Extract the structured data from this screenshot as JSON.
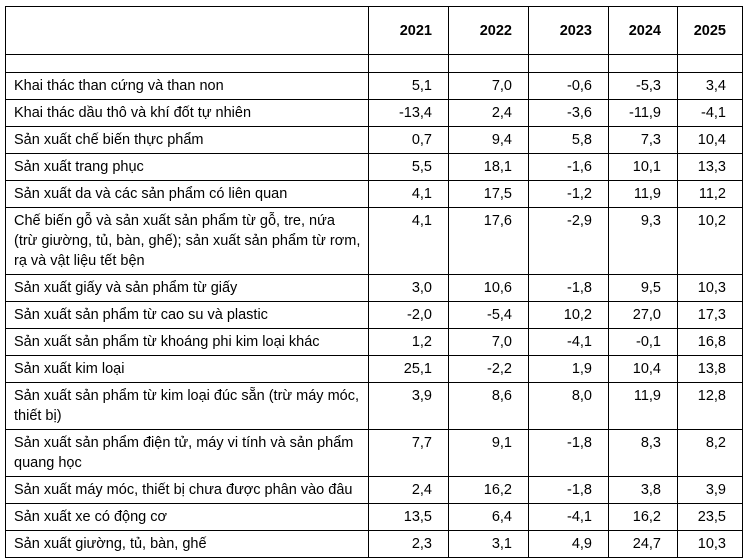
{
  "table": {
    "columns": [
      "",
      "2021",
      "2022",
      "2023",
      "2024",
      "2025"
    ],
    "rows": [
      {
        "label": "Khai thác than cứng và than non",
        "values": [
          "5,1",
          "7,0",
          "-0,6",
          "-5,3",
          "3,4"
        ]
      },
      {
        "label": "Khai thác dầu thô và khí đốt tự nhiên",
        "values": [
          "-13,4",
          "2,4",
          "-3,6",
          "-11,9",
          "-4,1"
        ]
      },
      {
        "label": "Sản xuất chế biến thực phẩm",
        "values": [
          "0,7",
          "9,4",
          "5,8",
          "7,3",
          "10,4"
        ]
      },
      {
        "label": "Sản xuất trang phục",
        "values": [
          "5,5",
          "18,1",
          "-1,6",
          "10,1",
          "13,3"
        ]
      },
      {
        "label": "Sản xuất da và các sản phẩm có liên quan",
        "values": [
          "4,1",
          "17,5",
          "-1,2",
          "11,9",
          "11,2"
        ]
      },
      {
        "label": "Chế biến gỗ và sản xuất sản phẩm từ gỗ, tre, nứa (trừ giường, tủ, bàn, ghế); sản xuất sản phẩm từ rơm, rạ và vật liệu tết bện",
        "values": [
          "4,1",
          "17,6",
          "-2,9",
          "9,3",
          "10,2"
        ]
      },
      {
        "label": "Sản xuất giấy và sản phẩm từ giấy",
        "values": [
          "3,0",
          "10,6",
          "-1,8",
          "9,5",
          "10,3"
        ]
      },
      {
        "label": "Sản xuất sản phẩm từ cao su và plastic",
        "values": [
          "-2,0",
          "-5,4",
          "10,2",
          "27,0",
          "17,3"
        ]
      },
      {
        "label": "Sản xuất sản phẩm từ khoáng phi kim loại khác",
        "values": [
          "1,2",
          "7,0",
          "-4,1",
          "-0,1",
          "16,8"
        ]
      },
      {
        "label": "Sản xuất kim loại",
        "values": [
          "25,1",
          "-2,2",
          "1,9",
          "10,4",
          "13,8"
        ]
      },
      {
        "label": "Sản xuất sản phẩm từ kim loại đúc sẵn (trừ máy móc, thiết bị)",
        "values": [
          "3,9",
          "8,6",
          "8,0",
          "11,9",
          "12,8"
        ]
      },
      {
        "label": "Sản xuất sản phẩm điện tử, máy vi tính và sản phẩm quang học",
        "values": [
          "7,7",
          "9,1",
          "-1,8",
          "8,3",
          "8,2"
        ]
      },
      {
        "label": "Sản xuất máy móc, thiết bị chưa được phân vào đâu",
        "values": [
          "2,4",
          "16,2",
          "-1,8",
          "3,8",
          "3,9"
        ]
      },
      {
        "label": "Sản xuất xe có động cơ",
        "values": [
          "13,5",
          "6,4",
          "-4,1",
          "16,2",
          "23,5"
        ]
      },
      {
        "label": "Sản xuất giường, tủ, bàn, ghế",
        "values": [
          "2,3",
          "3,1",
          "4,9",
          "24,7",
          "10,3"
        ]
      }
    ]
  }
}
